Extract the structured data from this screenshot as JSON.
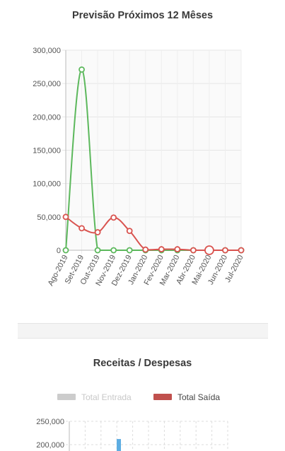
{
  "forecast": {
    "title": "Previsão Próximos 12 Mêses",
    "chart_data": {
      "type": "line",
      "categories": [
        "Ago-2019",
        "Set-2019",
        "Out-2019",
        "Nov-2019",
        "Dez-2019",
        "Jan-2020",
        "Fev-2020",
        "Mar-2020",
        "Abr-2020",
        "Mai-2020",
        "Jun-2020",
        "Jul-2020"
      ],
      "series": [
        {
          "color": "#5cb85c",
          "values": [
            0,
            271000,
            0,
            0,
            0,
            0,
            0,
            0,
            0,
            0,
            0,
            0
          ]
        },
        {
          "color": "#d9534f",
          "values": [
            50000,
            33000,
            27000,
            49000,
            29000,
            1000,
            1500,
            1500,
            0,
            0,
            0,
            0
          ]
        }
      ],
      "ylim": [
        0,
        300000
      ],
      "yticks": [
        0,
        50000,
        100000,
        150000,
        200000,
        250000,
        300000
      ],
      "ytick_labels": [
        "0",
        "50,000",
        "100,000",
        "150,000",
        "200,000",
        "250,000",
        "300,000"
      ],
      "grid": true
    }
  },
  "revenue": {
    "title": "Receitas / Despesas",
    "legend": [
      {
        "label": "Total Entrada",
        "color": "#cccccc",
        "hidden": true
      },
      {
        "label": "Total Saída",
        "color": "#c0504d",
        "hidden": false
      }
    ],
    "chart_data": {
      "type": "bar",
      "ylim": [
        0,
        250000
      ],
      "yticks": [
        200000,
        250000
      ],
      "ytick_labels": [
        "200,000",
        "250,000"
      ],
      "bar_color": "#5dade2",
      "visible_bar_top_value": 212000,
      "grid": true
    }
  }
}
